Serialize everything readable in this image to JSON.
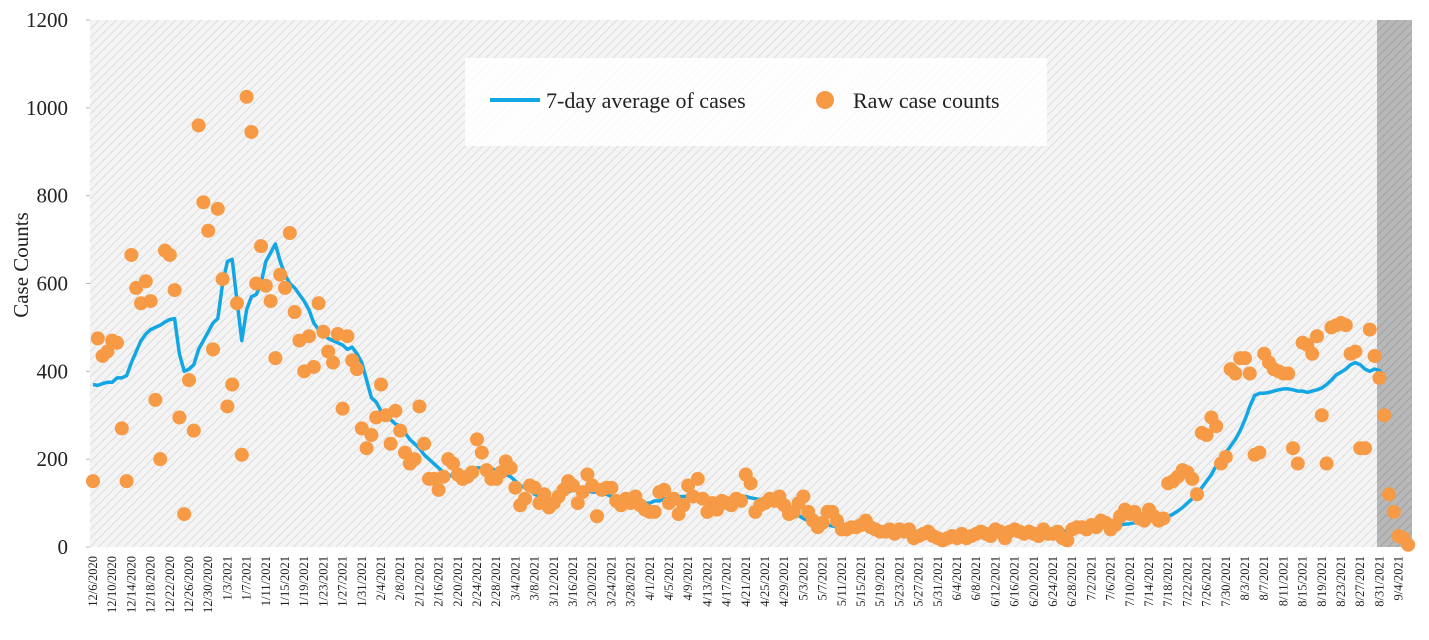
{
  "chart_data": {
    "type": "line",
    "y_label": "Case Counts",
    "ylim": [
      0,
      1200
    ],
    "yticks": [
      0,
      200,
      400,
      600,
      800,
      1000,
      1200
    ],
    "legend": "top",
    "categories": [
      "12/6/2020",
      null,
      null,
      null,
      "12/10/2020",
      null,
      null,
      null,
      "12/14/2020",
      null,
      null,
      null,
      "12/18/2020",
      null,
      null,
      null,
      "12/22/2020",
      null,
      null,
      null,
      "12/26/2020",
      null,
      null,
      null,
      "12/30/2020",
      null,
      null,
      null,
      "1/3/2021",
      null,
      null,
      null,
      "1/7/2021",
      null,
      null,
      null,
      "1/11/2021",
      null,
      null,
      null,
      "1/15/2021",
      null,
      null,
      null,
      "1/19/2021",
      null,
      null,
      null,
      "1/23/2021",
      null,
      null,
      null,
      "1/27/2021",
      null,
      null,
      null,
      "1/31/2021",
      null,
      null,
      null,
      "2/4/2021",
      null,
      null,
      null,
      "2/8/2021",
      null,
      null,
      null,
      "2/12/2021",
      null,
      null,
      null,
      "2/16/2021",
      null,
      null,
      null,
      "2/20/2021",
      null,
      null,
      null,
      "2/24/2021",
      null,
      null,
      null,
      "2/28/2021",
      null,
      null,
      null,
      "3/4/2021",
      null,
      null,
      null,
      "3/8/2021",
      null,
      null,
      null,
      "3/12/2021",
      null,
      null,
      null,
      "3/16/2021",
      null,
      null,
      null,
      "3/20/2021",
      null,
      null,
      null,
      "3/24/2021",
      null,
      null,
      null,
      "3/28/2021",
      null,
      null,
      null,
      "4/1/2021",
      null,
      null,
      null,
      "4/5/2021",
      null,
      null,
      null,
      "4/9/2021",
      null,
      null,
      null,
      "4/13/2021",
      null,
      null,
      null,
      "4/17/2021",
      null,
      null,
      null,
      "4/21/2021",
      null,
      null,
      null,
      "4/25/2021",
      null,
      null,
      null,
      "4/29/2021",
      null,
      null,
      null,
      "5/3/2021",
      null,
      null,
      null,
      "5/7/2021",
      null,
      null,
      null,
      "5/11/2021",
      null,
      null,
      null,
      "5/15/2021",
      null,
      null,
      null,
      "5/19/2021",
      null,
      null,
      null,
      "5/23/2021",
      null,
      null,
      null,
      "5/27/2021",
      null,
      null,
      null,
      "5/31/2021",
      null,
      null,
      null,
      "6/4/2021",
      null,
      null,
      null,
      "6/8/2021",
      null,
      null,
      null,
      "6/12/2021",
      null,
      null,
      null,
      "6/16/2021",
      null,
      null,
      null,
      "6/20/2021",
      null,
      null,
      null,
      "6/24/2021",
      null,
      null,
      null,
      "6/28/2021",
      null,
      null,
      null,
      "7/2/2021",
      null,
      null,
      null,
      "7/6/2021",
      null,
      null,
      null,
      "7/10/2021",
      null,
      null,
      null,
      "7/14/2021",
      null,
      null,
      null,
      "7/18/2021",
      null,
      null,
      null,
      "7/22/2021",
      null,
      null,
      null,
      "7/26/2021",
      null,
      null,
      null,
      "7/30/2021",
      null,
      null,
      null,
      "8/3/2021",
      null,
      null,
      null,
      "8/7/2021",
      null,
      null,
      null,
      "8/11/2021",
      null,
      null,
      null,
      "8/15/2021",
      null,
      null,
      null,
      "8/19/2021",
      null,
      null,
      null,
      "8/23/2021",
      null,
      null,
      null,
      "8/27/2021",
      null,
      null,
      null,
      "8/31/2021",
      null,
      null,
      null,
      "9/4/2021",
      null,
      null
    ],
    "series": [
      {
        "name": "7-day average of cases",
        "type": "line",
        "color": "#12a7e4",
        "values": [
          370,
          368,
          372,
          375,
          375,
          385,
          385,
          390,
          420,
          445,
          470,
          485,
          495,
          500,
          505,
          512,
          518,
          520,
          440,
          400,
          405,
          415,
          450,
          470,
          490,
          510,
          520,
          600,
          650,
          655,
          560,
          470,
          540,
          570,
          575,
          600,
          650,
          670,
          690,
          650,
          620,
          600,
          590,
          575,
          560,
          540,
          510,
          495,
          485,
          475,
          470,
          465,
          460,
          450,
          455,
          440,
          420,
          380,
          340,
          330,
          310,
          300,
          290,
          280,
          275,
          260,
          245,
          235,
          225,
          210,
          200,
          190,
          180,
          170,
          165,
          160,
          165,
          170,
          170,
          175,
          180,
          180,
          180,
          178,
          175,
          170,
          165,
          160,
          150,
          140,
          135,
          130,
          120,
          115,
          110,
          105,
          110,
          115,
          120,
          125,
          130,
          130,
          130,
          128,
          125,
          125,
          120,
          120,
          115,
          115,
          110,
          110,
          105,
          105,
          100,
          100,
          100,
          105,
          105,
          110,
          110,
          115,
          115,
          115,
          115,
          110,
          110,
          110,
          110,
          110,
          110,
          110,
          110,
          112,
          115,
          115,
          115,
          112,
          110,
          108,
          105,
          102,
          100,
          97,
          95,
          88,
          80,
          72,
          65,
          60,
          57,
          55,
          52,
          50,
          48,
          46,
          45,
          45,
          44,
          43,
          42,
          40,
          40,
          38,
          36,
          35,
          33,
          32,
          30,
          28,
          26,
          25,
          24,
          22,
          22,
          21,
          21,
          20,
          20,
          20,
          21,
          22,
          23,
          24,
          25,
          25,
          26,
          27,
          28,
          28,
          29,
          30,
          30,
          30,
          31,
          31,
          32,
          32,
          33,
          33,
          34,
          35,
          36,
          37,
          38,
          39,
          40,
          42,
          43,
          45,
          46,
          47,
          48,
          49,
          50,
          52,
          53,
          55,
          56,
          58,
          60,
          62,
          64,
          66,
          70,
          75,
          82,
          90,
          100,
          110,
          120,
          135,
          150,
          165,
          185,
          200,
          215,
          230,
          245,
          265,
          290,
          320,
          345,
          350,
          350,
          352,
          355,
          358,
          360,
          360,
          358,
          355,
          355,
          352,
          355,
          358,
          362,
          370,
          380,
          392,
          398,
          405,
          415,
          420,
          415,
          405,
          400,
          405,
          402,
          390,
          null,
          null,
          null,
          null,
          null
        ]
      },
      {
        "name": "Raw case counts",
        "type": "scatter",
        "color": "#f79a45",
        "values": [
          150,
          475,
          435,
          445,
          470,
          465,
          270,
          150,
          665,
          590,
          555,
          605,
          560,
          335,
          200,
          675,
          665,
          585,
          295,
          75,
          380,
          265,
          960,
          785,
          720,
          450,
          770,
          610,
          320,
          370,
          555,
          210,
          1025,
          945,
          600,
          685,
          595,
          560,
          430,
          620,
          590,
          715,
          535,
          470,
          400,
          480,
          410,
          555,
          490,
          445,
          420,
          485,
          315,
          480,
          425,
          405,
          270,
          225,
          255,
          295,
          370,
          300,
          235,
          310,
          265,
          215,
          190,
          200,
          320,
          235,
          155,
          155,
          130,
          160,
          200,
          190,
          165,
          155,
          160,
          170,
          245,
          215,
          175,
          155,
          155,
          170,
          195,
          180,
          135,
          95,
          110,
          140,
          135,
          100,
          120,
          90,
          100,
          115,
          130,
          150,
          140,
          100,
          125,
          165,
          140,
          70,
          130,
          135,
          135,
          105,
          95,
          110,
          100,
          115,
          95,
          85,
          80,
          80,
          125,
          130,
          100,
          110,
          75,
          95,
          140,
          115,
          155,
          110,
          80,
          100,
          85,
          105,
          100,
          95,
          110,
          105,
          165,
          145,
          80,
          95,
          100,
          110,
          105,
          115,
          95,
          75,
          80,
          100,
          115,
          80,
          60,
          45,
          55,
          80,
          80,
          60,
          40,
          40,
          45,
          45,
          50,
          60,
          45,
          40,
          35,
          35,
          40,
          30,
          40,
          35,
          40,
          20,
          25,
          30,
          35,
          25,
          20,
          15,
          20,
          25,
          20,
          30,
          20,
          25,
          30,
          35,
          30,
          25,
          40,
          35,
          20,
          35,
          40,
          35,
          30,
          35,
          30,
          25,
          40,
          30,
          30,
          35,
          20,
          15,
          40,
          45,
          45,
          40,
          50,
          45,
          60,
          55,
          40,
          50,
          70,
          85,
          75,
          80,
          65,
          60,
          85,
          70,
          60,
          65,
          145,
          150,
          160,
          175,
          170,
          155,
          120,
          260,
          255,
          295,
          275,
          190,
          205,
          405,
          395,
          430,
          430,
          395,
          210,
          215,
          440,
          420,
          405,
          400,
          395,
          395,
          225,
          190,
          465,
          460,
          440,
          480,
          300,
          190,
          500,
          505,
          510,
          505,
          440,
          445,
          225,
          225,
          495,
          435,
          385,
          300,
          120,
          80,
          25,
          20,
          5
        ]
      }
    ]
  }
}
